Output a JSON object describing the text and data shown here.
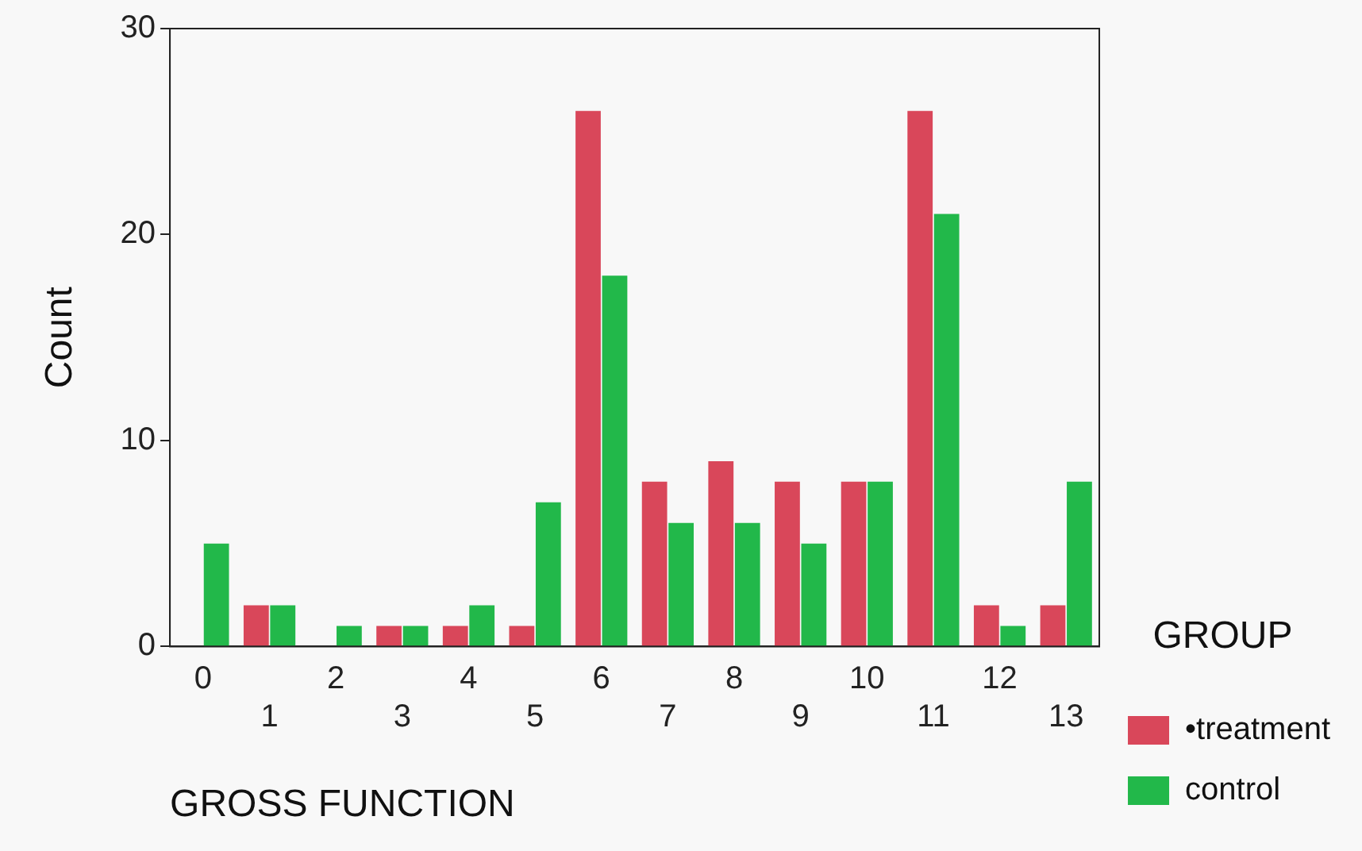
{
  "chart_data": {
    "type": "bar",
    "xlabel": "GROSS FUNCTION",
    "ylabel": "Count",
    "legend_title": "GROUP",
    "categories": [
      "0",
      "1",
      "2",
      "3",
      "4",
      "5",
      "6",
      "7",
      "8",
      "9",
      "10",
      "11",
      "12",
      "13"
    ],
    "series": [
      {
        "name": "•treatment",
        "color": "#d9475a",
        "values": [
          0,
          2,
          0,
          1,
          1,
          1,
          26,
          8,
          9,
          8,
          8,
          26,
          2,
          2
        ]
      },
      {
        "name": "control",
        "color": "#22b84a",
        "values": [
          5,
          2,
          1,
          1,
          2,
          7,
          18,
          6,
          6,
          5,
          8,
          21,
          1,
          8
        ]
      }
    ],
    "ylim": [
      0,
      30
    ],
    "yticks": [
      0,
      10,
      20,
      30
    ],
    "grid": false,
    "legend": "right"
  }
}
